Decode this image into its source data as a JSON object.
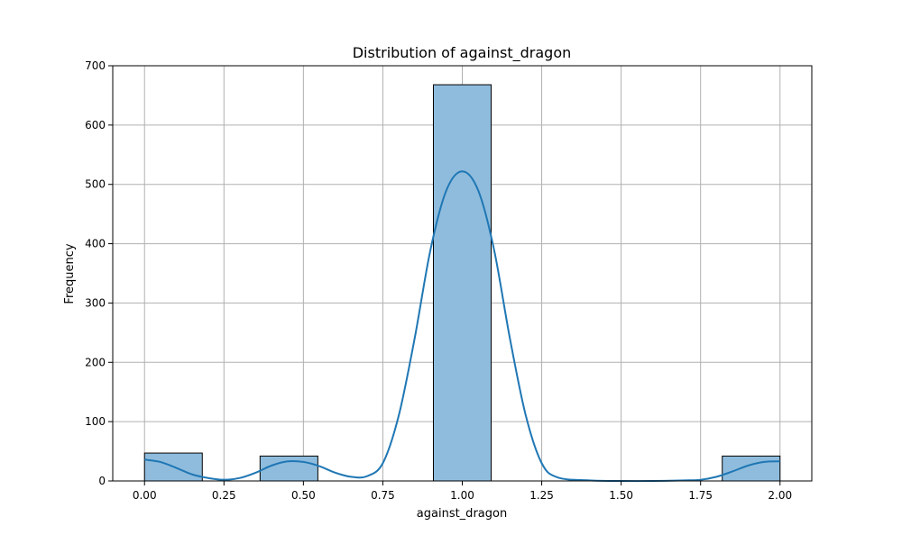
{
  "chart_data": {
    "type": "bar",
    "title": "Distribution of against_dragon",
    "xlabel": "against_dragon",
    "ylabel": "Frequency",
    "xlim": [
      -0.1,
      2.1
    ],
    "ylim": [
      0,
      700
    ],
    "xticks": [
      0.0,
      0.25,
      0.5,
      0.75,
      1.0,
      1.25,
      1.5,
      1.75,
      2.0
    ],
    "xtick_labels": [
      "0.00",
      "0.25",
      "0.50",
      "0.75",
      "1.00",
      "1.25",
      "1.50",
      "1.75",
      "2.00"
    ],
    "yticks": [
      0,
      100,
      200,
      300,
      400,
      500,
      600,
      700
    ],
    "ytick_labels": [
      "0",
      "100",
      "200",
      "300",
      "400",
      "500",
      "600",
      "700"
    ],
    "grid": true,
    "bars": [
      {
        "x0": 0.0,
        "x1": 0.1818,
        "count": 47
      },
      {
        "x0": 0.3636,
        "x1": 0.5455,
        "count": 42
      },
      {
        "x0": 0.9091,
        "x1": 1.0909,
        "count": 668
      },
      {
        "x0": 1.8182,
        "x1": 2.0,
        "count": 42
      }
    ],
    "kde": {
      "x": [
        0.0,
        0.05,
        0.1,
        0.15,
        0.2,
        0.25,
        0.3,
        0.35,
        0.4,
        0.45,
        0.5,
        0.55,
        0.6,
        0.65,
        0.7,
        0.75,
        0.8,
        0.85,
        0.9,
        0.95,
        1.0,
        1.05,
        1.1,
        1.15,
        1.2,
        1.25,
        1.3,
        1.4,
        1.5,
        1.6,
        1.7,
        1.75,
        1.8,
        1.85,
        1.9,
        1.95,
        2.0
      ],
      "y": [
        36,
        32,
        22,
        11,
        5,
        2,
        5,
        14,
        26,
        33,
        32,
        25,
        14,
        7,
        8,
        30,
        110,
        240,
        390,
        490,
        522,
        490,
        390,
        240,
        110,
        30,
        6,
        1,
        0,
        0,
        1,
        2,
        7,
        16,
        26,
        32,
        33
      ]
    },
    "colors": {
      "bar_fill": "#8fbcdd",
      "bar_edge": "#000000",
      "kde_line": "#1f77b4",
      "grid": "#b0b0b0"
    }
  }
}
